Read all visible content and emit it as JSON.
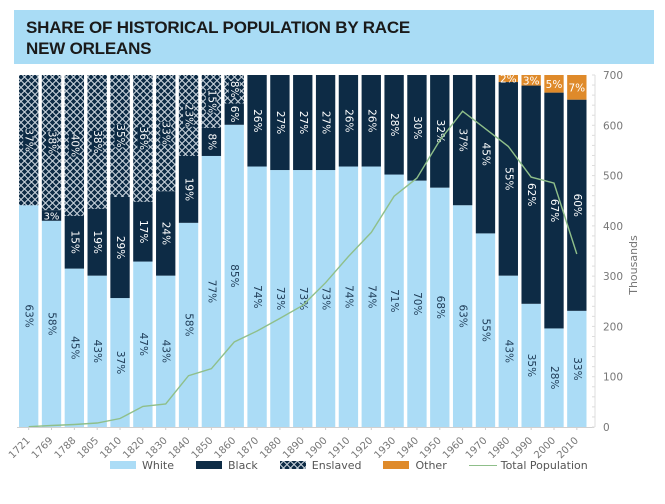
{
  "header": {
    "title_line1": "SHARE OF HISTORICAL POPULATION BY RACE",
    "title_line2": "NEW ORLEANS"
  },
  "colors": {
    "white": "#abdcf6",
    "black": "#0d2b45",
    "enslaved_bg": "#0d2b45",
    "enslaved_hatch": "#c9d3dc",
    "other": "#df8a2a",
    "total_population": "#8fbf8a",
    "title_bg": "#a9dcf5",
    "axis_text": "#777777"
  },
  "chart_data": {
    "type": "bar",
    "stacked": true,
    "title": "SHARE OF HISTORICAL POPULATION BY RACE NEW ORLEANS",
    "xlabel": "",
    "ylabel": "",
    "y2label": "Thousands",
    "y2lim": [
      0,
      700
    ],
    "y2ticks": [
      0,
      100,
      200,
      300,
      400,
      500,
      600,
      700
    ],
    "legend_position": "bottom",
    "categories": [
      "1721",
      "1769",
      "1788",
      "1805",
      "1810",
      "1820",
      "1830",
      "1840",
      "1850",
      "1860",
      "1870",
      "1880",
      "1890",
      "1900",
      "1910",
      "1920",
      "1930",
      "1940",
      "1950",
      "1960",
      "1970",
      "1980",
      "1990",
      "2000",
      "2010"
    ],
    "series": [
      {
        "name": "White",
        "unit": "percent",
        "values": [
          63,
          58,
          45,
          43,
          37,
          47,
          43,
          58,
          77,
          85,
          74,
          73,
          73,
          73,
          74,
          74,
          71,
          70,
          68,
          63,
          55,
          43,
          35,
          28,
          33
        ]
      },
      {
        "name": "Black",
        "unit": "percent",
        "values": [
          0,
          3,
          15,
          19,
          29,
          17,
          24,
          19,
          8,
          6,
          26,
          27,
          27,
          27,
          26,
          26,
          28,
          30,
          32,
          37,
          45,
          55,
          62,
          67,
          60
        ]
      },
      {
        "name": "Enslaved",
        "unit": "percent",
        "values": [
          37,
          38,
          40,
          38,
          35,
          36,
          33,
          23,
          15,
          8,
          0,
          0,
          0,
          0,
          0,
          0,
          0,
          0,
          0,
          0,
          0,
          0,
          0,
          0,
          0
        ]
      },
      {
        "name": "Other",
        "unit": "percent",
        "values": [
          0,
          0,
          0,
          0,
          0,
          0,
          0,
          0,
          0,
          0,
          0,
          0,
          0,
          0,
          0,
          0,
          0,
          0,
          0,
          0,
          0,
          2,
          3,
          5,
          7
        ]
      },
      {
        "name": "Total Population",
        "type": "line",
        "axis": "right",
        "unit": "thousands",
        "values": [
          0.5,
          3,
          5,
          8,
          17,
          41,
          46,
          102,
          116,
          169,
          191,
          216,
          242,
          287,
          339,
          387,
          459,
          495,
          570,
          628,
          593,
          558,
          497,
          485,
          344
        ]
      }
    ],
    "labels": {
      "White": [
        "63%",
        "58%",
        "45%",
        "43%",
        "37%",
        "47%",
        "43%",
        "58%",
        "77%",
        "85%",
        "74%",
        "73%",
        "73%",
        "73%",
        "74%",
        "74%",
        "71%",
        "70%",
        "68%",
        "63%",
        "55%",
        "43%",
        "35%",
        "28%",
        "33%"
      ],
      "Black": [
        "",
        "3%",
        "15%",
        "19%",
        "29%",
        "17%",
        "24%",
        "19%",
        "8%",
        "6%",
        "26%",
        "27%",
        "27%",
        "27%",
        "26%",
        "26%",
        "28%",
        "30%",
        "32%",
        "37%",
        "45%",
        "55%",
        "62%",
        "67%",
        "60%"
      ],
      "Enslaved": [
        "37%",
        "38%",
        "40%",
        "38%",
        "35%",
        "36%",
        "33%",
        "23%",
        "15%",
        "8%",
        "",
        "",
        "",
        "",
        "",
        "",
        "",
        "",
        "",
        "",
        "",
        "",
        "",
        "",
        ""
      ],
      "Other": [
        "",
        "",
        "",
        "",
        "",
        "",
        "",
        "",
        "",
        "",
        "",
        "",
        "",
        "",
        "",
        "",
        "",
        "",
        "",
        "",
        "",
        "2%",
        "3%",
        "5%",
        "7%"
      ]
    }
  },
  "legend": {
    "items": [
      {
        "label": "White",
        "key": "white"
      },
      {
        "label": "Black",
        "key": "black"
      },
      {
        "label": "Enslaved",
        "key": "enslaved"
      },
      {
        "label": "Other",
        "key": "other"
      },
      {
        "label": "Total Population",
        "key": "total"
      }
    ]
  }
}
